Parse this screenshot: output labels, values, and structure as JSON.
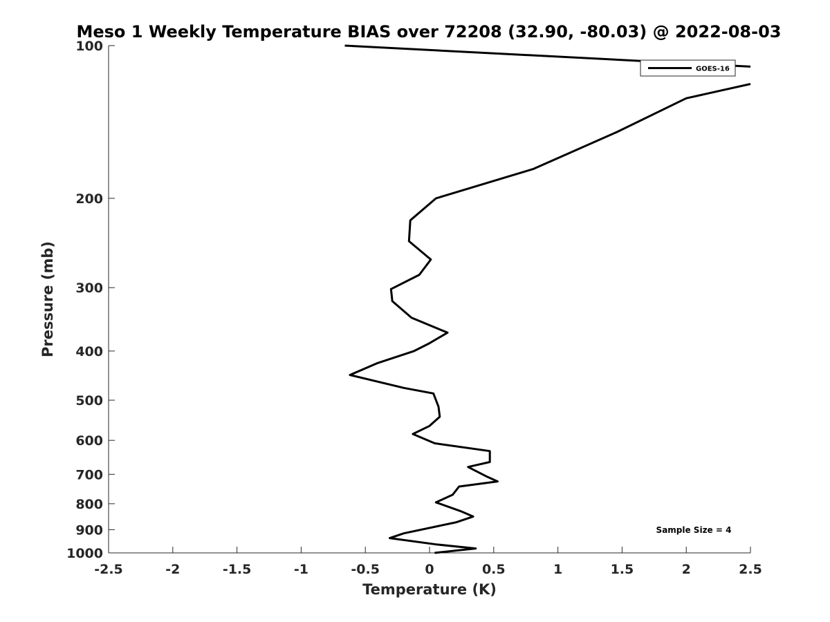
{
  "chart_data": {
    "type": "line",
    "title": "Meso 1 Weekly Temperature BIAS over 72208 (32.90, -80.03) @ 2022-08-03",
    "xlabel": "Temperature (K)",
    "ylabel": "Pressure (mb)",
    "xlim": [
      -2.5,
      2.5
    ],
    "ylim": [
      1000,
      100
    ],
    "y_scale": "log",
    "y_reversed": true,
    "grid": false,
    "legend_position": "top-right",
    "x_ticks": [
      -2.5,
      -2,
      -1.5,
      -1,
      -0.5,
      0,
      0.5,
      1,
      1.5,
      2,
      2.5
    ],
    "x_tick_labels": [
      "-2.5",
      "-2",
      "-1.5",
      "-1",
      "-0.5",
      "0",
      "0.5",
      "1",
      "1.5",
      "2",
      "2.5"
    ],
    "y_ticks": [
      100,
      200,
      300,
      400,
      500,
      600,
      700,
      800,
      900,
      1000
    ],
    "y_tick_labels": [
      "100",
      "200",
      "300",
      "400",
      "500",
      "600",
      "700",
      "800",
      "900",
      "1000"
    ],
    "annotation": "Sample Size = 4",
    "series": [
      {
        "name": "GOES-16",
        "color": "#000000",
        "segments": [
          [
            {
              "x": -0.66,
              "y": 100
            },
            {
              "x": 2.5,
              "y": 110
            }
          ],
          [
            {
              "x": 2.5,
              "y": 119
            },
            {
              "x": 2.0,
              "y": 127
            },
            {
              "x": 1.46,
              "y": 148
            },
            {
              "x": 0.81,
              "y": 175
            },
            {
              "x": 0.05,
              "y": 200
            },
            {
              "x": -0.15,
              "y": 221
            },
            {
              "x": -0.16,
              "y": 243
            },
            {
              "x": 0.01,
              "y": 264
            },
            {
              "x": -0.08,
              "y": 283
            },
            {
              "x": -0.3,
              "y": 302
            },
            {
              "x": -0.29,
              "y": 319
            },
            {
              "x": -0.14,
              "y": 344
            },
            {
              "x": 0.14,
              "y": 368
            },
            {
              "x": 0.0,
              "y": 386
            },
            {
              "x": -0.12,
              "y": 400
            },
            {
              "x": -0.41,
              "y": 423
            },
            {
              "x": -0.62,
              "y": 446
            },
            {
              "x": -0.2,
              "y": 473
            },
            {
              "x": 0.03,
              "y": 485
            },
            {
              "x": 0.07,
              "y": 515
            },
            {
              "x": 0.08,
              "y": 539
            },
            {
              "x": 0.0,
              "y": 562
            },
            {
              "x": -0.13,
              "y": 583
            },
            {
              "x": 0.04,
              "y": 608
            },
            {
              "x": 0.47,
              "y": 630
            },
            {
              "x": 0.47,
              "y": 662
            },
            {
              "x": 0.3,
              "y": 677
            },
            {
              "x": 0.45,
              "y": 708
            },
            {
              "x": 0.53,
              "y": 723
            },
            {
              "x": 0.23,
              "y": 740
            },
            {
              "x": 0.18,
              "y": 768
            },
            {
              "x": 0.05,
              "y": 795
            },
            {
              "x": 0.24,
              "y": 827
            },
            {
              "x": 0.34,
              "y": 848
            },
            {
              "x": 0.21,
              "y": 870
            },
            {
              "x": -0.2,
              "y": 915
            },
            {
              "x": -0.31,
              "y": 935
            },
            {
              "x": 0.05,
              "y": 962
            },
            {
              "x": 0.36,
              "y": 980
            },
            {
              "x": 0.04,
              "y": 1000
            }
          ]
        ]
      }
    ]
  }
}
